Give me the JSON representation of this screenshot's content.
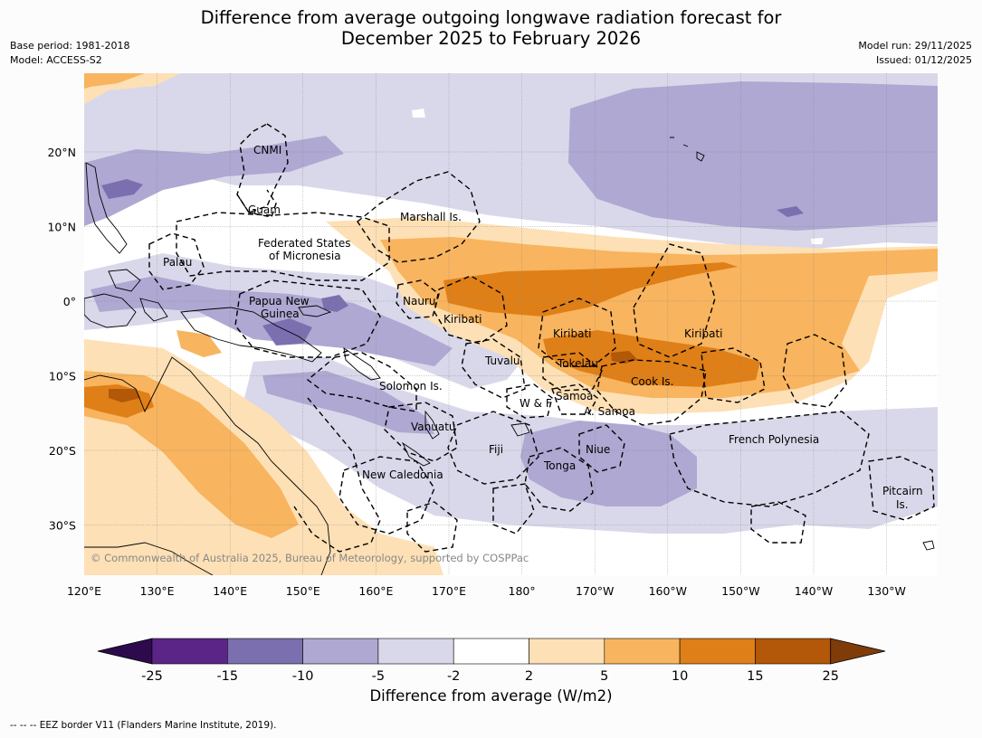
{
  "header": {
    "title_line1": "Difference from average outgoing longwave radiation forecast for",
    "title_line2": "December 2025 to February 2026",
    "base_period": "Base period: 1981-2018",
    "model": "Model: ACCESS-S2",
    "model_run": "Model run: 29/11/2025",
    "issued": "Issued: 01/12/2025"
  },
  "map": {
    "lon_labels": [
      "120°E",
      "130°E",
      "140°E",
      "150°E",
      "160°E",
      "170°E",
      "180°",
      "170°W",
      "160°W",
      "150°W",
      "140°W",
      "130°W"
    ],
    "lat_labels": [
      "20°N",
      "10°N",
      "0°",
      "10°S",
      "20°S",
      "30°S"
    ],
    "copyright": "© Commonwealth of Australia 2025, Bureau of Meteorology, supported by COSPPac",
    "places": {
      "cnmi": "CNMI",
      "guam": "Guam",
      "marshall": "Marshall Is.",
      "fsm1": "Federated States",
      "fsm2": "of Micronesia",
      "palau": "Palau",
      "png1": "Papua New",
      "png2": "Guinea",
      "nauru": "Nauru",
      "kiribati_w": "Kiribati",
      "kiribati_c": "Kiribati",
      "kiribati_e": "Kiribati",
      "tuvalu": "Tuvalu",
      "tokelau": "Tokelau",
      "cook": "Cook Is.",
      "solomon": "Solomon Is.",
      "samoa": "Samoa",
      "wf": "W & F",
      "asamoa": "A. Samoa",
      "vanuatu": "Vanuatu",
      "fiji": "Fiji",
      "niue": "Niue",
      "tonga": "Tonga",
      "frenchpoly": "French Polynesia",
      "newcal": "New Caledonia",
      "pitcairn1": "Pitcairn",
      "pitcairn2": "Is."
    }
  },
  "colorbar": {
    "ticks": [
      "-25",
      "-15",
      "-10",
      "-5",
      "-2",
      "2",
      "5",
      "10",
      "15",
      "25"
    ],
    "colors": [
      "#5a2586",
      "#7c6faf",
      "#aea8d2",
      "#d9d8ea",
      "#ffffff",
      "#fde0b5",
      "#f8b45e",
      "#df7f17",
      "#b35708"
    ],
    "low_ext": "#2d0a4d",
    "high_ext": "#7f3b08",
    "label": "Difference from average (W/m2)"
  },
  "footer": {
    "note": "--  --  -- EEZ border V11 (Flanders Marine Institute, 2019)."
  }
}
